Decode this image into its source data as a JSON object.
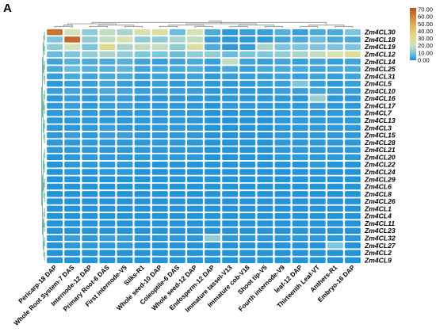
{
  "panel_label": "A",
  "chart_data": {
    "type": "heatmap",
    "title": "",
    "xlabel": "",
    "ylabel": "",
    "color_scale": {
      "min": 0,
      "max": 70,
      "ticks": [
        "70.00",
        "60.00",
        "50.00",
        "40.00",
        "30.00",
        "20.00",
        "10.00",
        "0.00"
      ],
      "stops": [
        {
          "value": 0,
          "color": "#1a8ed8"
        },
        {
          "value": 10,
          "color": "#7ec6dd"
        },
        {
          "value": 20,
          "color": "#d3e2b8"
        },
        {
          "value": 35,
          "color": "#e7d57c"
        },
        {
          "value": 50,
          "color": "#dba553"
        },
        {
          "value": 70,
          "color": "#b9531f"
        }
      ]
    },
    "columns": [
      "Pericarp-18 DAP",
      "Whole Root System-7 DAS",
      "Internode-12 DAP",
      "Primary Root-6 DAS",
      "First internode-V5",
      "Silks-R1",
      "Whole seed-10 DAP",
      "Coleoptile-6 DAS",
      "Whole seed-12 DAP",
      "Endosperm-12 DAP",
      "Immature tassel-V13",
      "Immature cob-V18",
      "Shoot tip-V5",
      "Fourth internode-V9",
      "leaf-12 DAP",
      "Thirteenth Leaf-VT",
      "Anthers-R1",
      "Embryo-16 DAP"
    ],
    "rows": [
      "Zm4CL30",
      "Zm4CL18",
      "Zm4CL19",
      "Zm4CL12",
      "Zm4CL14",
      "Zm4CL25",
      "Zm4CL31",
      "Zm4CL5",
      "Zm4CL10",
      "Zm4CL16",
      "Zm4CL17",
      "Zm4CL7",
      "Zm4CL13",
      "Zm4CL3",
      "Zm4CL15",
      "Zm4CL28",
      "Zm4CL21",
      "Zm4CL20",
      "Zm4CL22",
      "Zm4CL24",
      "Zm4CL29",
      "Zm4CL6",
      "Zm4CL8",
      "Zm4CL26",
      "Zm4CL1",
      "Zm4CL4",
      "Zm4CL11",
      "Zm4CL23",
      "Zm4CL32",
      "Zm4CL27",
      "Zm4CL2",
      "Zm4CL9"
    ],
    "values": [
      [
        62,
        20,
        12,
        18,
        15,
        22,
        25,
        8,
        20,
        5,
        2,
        3,
        3,
        6,
        3,
        5,
        5,
        10
      ],
      [
        10,
        65,
        12,
        18,
        22,
        12,
        12,
        15,
        18,
        3,
        2,
        2,
        2,
        4,
        5,
        8,
        5,
        5
      ],
      [
        12,
        20,
        10,
        30,
        15,
        18,
        18,
        12,
        25,
        5,
        2,
        3,
        15,
        10,
        10,
        10,
        10,
        10
      ],
      [
        8,
        10,
        12,
        15,
        12,
        10,
        10,
        8,
        12,
        12,
        8,
        10,
        10,
        12,
        15,
        18,
        22,
        28
      ],
      [
        4,
        6,
        5,
        5,
        6,
        4,
        3,
        4,
        5,
        3,
        18,
        4,
        3,
        4,
        3,
        4,
        3,
        4
      ],
      [
        5,
        8,
        6,
        6,
        7,
        4,
        5,
        5,
        6,
        3,
        5,
        3,
        5,
        5,
        5,
        4,
        5,
        5
      ],
      [
        3,
        5,
        4,
        5,
        5,
        3,
        4,
        3,
        4,
        2,
        3,
        3,
        3,
        4,
        3,
        4,
        3,
        4
      ],
      [
        2,
        3,
        3,
        4,
        3,
        2,
        3,
        2,
        3,
        2,
        2,
        2,
        3,
        3,
        10,
        3,
        2,
        3
      ],
      [
        3,
        4,
        3,
        5,
        4,
        3,
        3,
        3,
        3,
        2,
        2,
        2,
        2,
        3,
        3,
        4,
        3,
        3
      ],
      [
        2,
        3,
        2,
        3,
        3,
        2,
        2,
        2,
        2,
        2,
        2,
        2,
        2,
        2,
        2,
        13,
        2,
        2
      ],
      [
        2,
        3,
        2,
        3,
        3,
        2,
        2,
        2,
        2,
        1,
        2,
        2,
        2,
        2,
        2,
        3,
        2,
        2
      ],
      [
        2,
        3,
        2,
        2,
        2,
        2,
        2,
        2,
        2,
        1,
        1,
        1,
        1,
        2,
        2,
        2,
        2,
        2
      ],
      [
        2,
        2,
        2,
        2,
        2,
        2,
        2,
        2,
        2,
        1,
        1,
        1,
        1,
        2,
        2,
        2,
        2,
        2
      ],
      [
        2,
        2,
        2,
        3,
        2,
        2,
        2,
        2,
        2,
        1,
        1,
        1,
        1,
        2,
        2,
        2,
        2,
        2
      ],
      [
        2,
        3,
        2,
        3,
        3,
        2,
        2,
        2,
        2,
        1,
        1,
        1,
        1,
        2,
        2,
        2,
        2,
        2
      ],
      [
        2,
        2,
        2,
        2,
        2,
        2,
        2,
        2,
        2,
        1,
        1,
        1,
        1,
        2,
        2,
        2,
        2,
        2
      ],
      [
        2,
        2,
        2,
        2,
        2,
        2,
        2,
        2,
        2,
        1,
        1,
        1,
        1,
        2,
        2,
        2,
        2,
        2
      ],
      [
        1,
        2,
        2,
        2,
        2,
        2,
        2,
        2,
        2,
        1,
        1,
        1,
        1,
        2,
        2,
        2,
        2,
        2
      ],
      [
        1,
        2,
        2,
        2,
        2,
        1,
        1,
        1,
        1,
        1,
        1,
        1,
        1,
        1,
        1,
        2,
        1,
        1
      ],
      [
        1,
        2,
        1,
        2,
        2,
        1,
        1,
        1,
        1,
        1,
        1,
        1,
        1,
        1,
        1,
        1,
        1,
        1
      ],
      [
        1,
        1,
        1,
        1,
        1,
        1,
        1,
        1,
        1,
        1,
        1,
        1,
        1,
        1,
        1,
        1,
        1,
        1
      ],
      [
        1,
        1,
        1,
        1,
        1,
        1,
        1,
        1,
        1,
        1,
        1,
        1,
        1,
        1,
        1,
        1,
        1,
        1
      ],
      [
        1,
        1,
        1,
        1,
        1,
        1,
        1,
        1,
        1,
        1,
        1,
        1,
        1,
        1,
        1,
        1,
        1,
        1
      ],
      [
        1,
        1,
        1,
        1,
        1,
        1,
        1,
        1,
        1,
        1,
        1,
        1,
        1,
        1,
        1,
        1,
        1,
        1
      ],
      [
        1,
        1,
        1,
        1,
        1,
        1,
        1,
        1,
        1,
        1,
        1,
        1,
        1,
        1,
        1,
        1,
        1,
        1
      ],
      [
        1,
        1,
        1,
        1,
        1,
        1,
        1,
        1,
        1,
        1,
        1,
        1,
        1,
        1,
        1,
        1,
        1,
        1
      ],
      [
        1,
        1,
        1,
        1,
        1,
        1,
        1,
        1,
        1,
        1,
        1,
        1,
        1,
        1,
        1,
        1,
        1,
        1
      ],
      [
        1,
        1,
        1,
        1,
        1,
        1,
        1,
        1,
        1,
        1,
        1,
        1,
        1,
        1,
        1,
        1,
        1,
        1
      ],
      [
        2,
        3,
        2,
        3,
        3,
        2,
        2,
        2,
        2,
        12,
        2,
        2,
        2,
        2,
        2,
        2,
        2,
        2
      ],
      [
        1,
        2,
        2,
        2,
        2,
        1,
        1,
        1,
        1,
        1,
        1,
        1,
        1,
        1,
        1,
        1,
        10,
        1
      ],
      [
        1,
        1,
        1,
        1,
        1,
        1,
        1,
        1,
        1,
        1,
        1,
        1,
        1,
        1,
        1,
        1,
        1,
        1
      ],
      [
        1,
        1,
        1,
        1,
        1,
        1,
        1,
        1,
        1,
        1,
        1,
        1,
        1,
        1,
        1,
        1,
        1,
        1
      ]
    ],
    "grid": true,
    "legend": "top-right colorbar",
    "col_dendrogram": [
      [
        0,
        1
      ],
      [
        2,
        3
      ],
      [
        4,
        5
      ],
      [
        6,
        7
      ],
      [
        8,
        9
      ],
      [
        10,
        11
      ],
      [
        12,
        13
      ],
      [
        14,
        15
      ],
      [
        16,
        17
      ],
      [
        18,
        1
      ],
      [
        19,
        20
      ],
      [
        21,
        22
      ],
      [
        23,
        24
      ],
      [
        25,
        26
      ],
      [
        27,
        28
      ],
      [
        29,
        30
      ],
      [
        31,
        32
      ],
      [
        33,
        34
      ]
    ],
    "row_dendrogram": [
      [
        0,
        1
      ],
      [
        2,
        3
      ],
      [
        4,
        5
      ],
      [
        6,
        7
      ],
      [
        8,
        9
      ],
      [
        10,
        11
      ],
      [
        12,
        13
      ],
      [
        14,
        15
      ],
      [
        16,
        17
      ],
      [
        18,
        19
      ],
      [
        20,
        21
      ],
      [
        22,
        23
      ],
      [
        24,
        25
      ],
      [
        26,
        27
      ],
      [
        28,
        29
      ],
      [
        30,
        31
      ],
      [
        32,
        33
      ],
      [
        34,
        35
      ],
      [
        36,
        37
      ],
      [
        38,
        39
      ],
      [
        40,
        41
      ],
      [
        42,
        43
      ],
      [
        44,
        45
      ],
      [
        46,
        47
      ],
      [
        48,
        49
      ],
      [
        50,
        51
      ],
      [
        52,
        53
      ],
      [
        54,
        55
      ],
      [
        56,
        57
      ],
      [
        58,
        59
      ],
      [
        60,
        61
      ]
    ]
  }
}
